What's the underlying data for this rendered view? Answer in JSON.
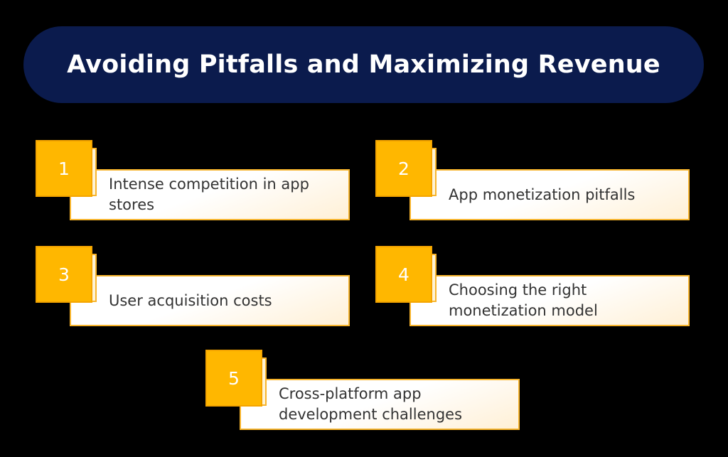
{
  "title": "Avoiding Pitfalls and Maximizing Revenue",
  "colors": {
    "background": "#000000",
    "title_pill": "#0b1b4d",
    "badge": "#ffb700",
    "card_border": "#f7b42c",
    "card_text": "#333333"
  },
  "items": [
    {
      "number": "1",
      "text": "Intense competition in app stores"
    },
    {
      "number": "2",
      "text": "App monetization pitfalls"
    },
    {
      "number": "3",
      "text": "User acquisition costs"
    },
    {
      "number": "4",
      "text": "Choosing the right monetization model"
    },
    {
      "number": "5",
      "text": "Cross-platform app development challenges"
    }
  ]
}
